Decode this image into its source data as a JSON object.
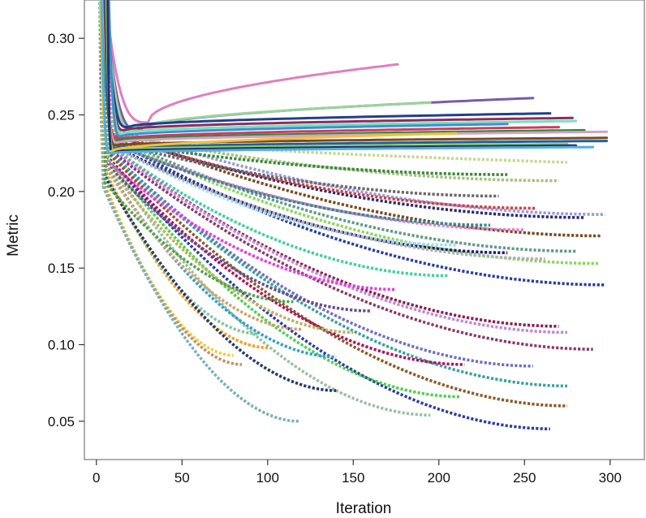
{
  "chart_data": {
    "type": "line",
    "title": "",
    "xlabel": "Iteration",
    "ylabel": "Metric",
    "xlim": [
      -7,
      320
    ],
    "ylim": [
      0.025,
      0.325
    ],
    "xticks": [
      0,
      50,
      100,
      150,
      200,
      250,
      300
    ],
    "yticks": [
      0.05,
      0.1,
      0.15,
      0.2,
      0.25,
      0.3
    ],
    "xtick_labels": [
      "0",
      "50",
      "100",
      "150",
      "200",
      "250",
      "300"
    ],
    "ytick_labels": [
      "0.05",
      "0.10",
      "0.15",
      "0.20",
      "0.25",
      "0.30"
    ],
    "grid": false,
    "legend": "none",
    "series": [
      {
        "color": "#e07fc0",
        "style": "solid",
        "x_start": 30,
        "x_end": 176,
        "y_start": 0.245,
        "y_end": 0.283
      },
      {
        "color": "#7a5aa8",
        "style": "solid",
        "x_start": 25,
        "x_end": 255,
        "y_start": 0.24,
        "y_end": 0.261
      },
      {
        "color": "#9bd49a",
        "style": "solid",
        "x_start": 22,
        "x_end": 195,
        "y_start": 0.24,
        "y_end": 0.258
      },
      {
        "color": "#1f3f8f",
        "style": "solid",
        "x_start": 18,
        "x_end": 265,
        "y_start": 0.242,
        "y_end": 0.251
      },
      {
        "color": "#8e2b5c",
        "style": "solid",
        "x_start": 16,
        "x_end": 278,
        "y_start": 0.24,
        "y_end": 0.248
      },
      {
        "color": "#76e0c0",
        "style": "solid",
        "x_start": 15,
        "x_end": 280,
        "y_start": 0.238,
        "y_end": 0.246
      },
      {
        "color": "#3f8fd0",
        "style": "solid",
        "x_start": 14,
        "x_end": 240,
        "y_start": 0.236,
        "y_end": 0.244
      },
      {
        "color": "#d03a5f",
        "style": "solid",
        "x_start": 13,
        "x_end": 270,
        "y_start": 0.234,
        "y_end": 0.242
      },
      {
        "color": "#2e8b3e",
        "style": "solid",
        "x_start": 12,
        "x_end": 285,
        "y_start": 0.233,
        "y_end": 0.24
      },
      {
        "color": "#d9a0c0",
        "style": "solid",
        "x_start": 12,
        "x_end": 298,
        "y_start": 0.232,
        "y_end": 0.239
      },
      {
        "color": "#7a4a1f",
        "style": "solid",
        "x_start": 11,
        "x_end": 298,
        "y_start": 0.23,
        "y_end": 0.235
      },
      {
        "color": "#1f5fa0",
        "style": "solid",
        "x_start": 10,
        "x_end": 298,
        "y_start": 0.228,
        "y_end": 0.233
      },
      {
        "color": "#8cd65a",
        "style": "solid",
        "x_start": 10,
        "x_end": 275,
        "y_start": 0.227,
        "y_end": 0.231
      },
      {
        "color": "#2c2c6e",
        "style": "solid",
        "x_start": 9,
        "x_end": 280,
        "y_start": 0.226,
        "y_end": 0.23
      },
      {
        "color": "#f0c040",
        "style": "solid",
        "x_start": 8,
        "x_end": 210,
        "y_start": 0.226,
        "y_end": 0.238
      },
      {
        "color": "#4fb0e0",
        "style": "solid",
        "x_start": 8,
        "x_end": 290,
        "y_start": 0.225,
        "y_end": 0.229
      },
      {
        "color": "#9a9ae0",
        "style": "dotted",
        "x_start": 13,
        "x_end": 297,
        "y_start": 0.24,
        "y_end": 0.185
      },
      {
        "color": "#7a4a1f",
        "style": "dotted",
        "x_start": 13,
        "x_end": 295,
        "y_start": 0.238,
        "y_end": 0.171
      },
      {
        "color": "#2c2c6e",
        "style": "dotted",
        "x_start": 12,
        "x_end": 285,
        "y_start": 0.236,
        "y_end": 0.183
      },
      {
        "color": "#c8d890",
        "style": "dotted",
        "x_start": 12,
        "x_end": 275,
        "y_start": 0.238,
        "y_end": 0.219
      },
      {
        "color": "#a8c080",
        "style": "dotted",
        "x_start": 12,
        "x_end": 270,
        "y_start": 0.237,
        "y_end": 0.207
      },
      {
        "color": "#d04040",
        "style": "dotted",
        "x_start": 12,
        "x_end": 257,
        "y_start": 0.236,
        "y_end": 0.189
      },
      {
        "color": "#5f9a8a",
        "style": "dotted",
        "x_start": 11,
        "x_end": 280,
        "y_start": 0.235,
        "y_end": 0.161
      },
      {
        "color": "#8cd65a",
        "style": "dotted",
        "x_start": 11,
        "x_end": 293,
        "y_start": 0.234,
        "y_end": 0.153
      },
      {
        "color": "#2c3ea0",
        "style": "dotted",
        "x_start": 11,
        "x_end": 297,
        "y_start": 0.233,
        "y_end": 0.139
      },
      {
        "color": "#3a8a3a",
        "style": "dotted",
        "x_start": 10,
        "x_end": 240,
        "y_start": 0.232,
        "y_end": 0.211
      },
      {
        "color": "#6a6a6a",
        "style": "dotted",
        "x_start": 10,
        "x_end": 235,
        "y_start": 0.232,
        "y_end": 0.197
      },
      {
        "color": "#e080d0",
        "style": "dotted",
        "x_start": 10,
        "x_end": 250,
        "y_start": 0.231,
        "y_end": 0.175
      },
      {
        "color": "#2e8b8b",
        "style": "dotted",
        "x_start": 10,
        "x_end": 230,
        "y_start": 0.231,
        "y_end": 0.178
      },
      {
        "color": "#1a1a80",
        "style": "dotted",
        "x_start": 10,
        "x_end": 240,
        "y_start": 0.23,
        "y_end": 0.16
      },
      {
        "color": "#a0e0f0",
        "style": "dotted",
        "x_start": 9,
        "x_end": 210,
        "y_start": 0.23,
        "y_end": 0.165
      },
      {
        "color": "#b0b0b0",
        "style": "dotted",
        "x_start": 9,
        "x_end": 262,
        "y_start": 0.229,
        "y_end": 0.156
      },
      {
        "color": "#40d0a0",
        "style": "dotted",
        "x_start": 9,
        "x_end": 205,
        "y_start": 0.229,
        "y_end": 0.145
      },
      {
        "color": "#8a2050",
        "style": "dotted",
        "x_start": 9,
        "x_end": 270,
        "y_start": 0.228,
        "y_end": 0.112
      },
      {
        "color": "#c088d8",
        "style": "dotted",
        "x_start": 9,
        "x_end": 275,
        "y_start": 0.228,
        "y_end": 0.108
      },
      {
        "color": "#8a3a6a",
        "style": "dotted",
        "x_start": 8,
        "x_end": 290,
        "y_start": 0.227,
        "y_end": 0.097
      },
      {
        "color": "#7070c0",
        "style": "dotted",
        "x_start": 8,
        "x_end": 255,
        "y_start": 0.226,
        "y_end": 0.086
      },
      {
        "color": "#3aa0a0",
        "style": "dotted",
        "x_start": 8,
        "x_end": 275,
        "y_start": 0.225,
        "y_end": 0.073
      },
      {
        "color": "#8a5a2a",
        "style": "dotted",
        "x_start": 8,
        "x_end": 275,
        "y_start": 0.224,
        "y_end": 0.06
      },
      {
        "color": "#2c3ea0",
        "style": "dotted",
        "x_start": 7,
        "x_end": 265,
        "y_start": 0.222,
        "y_end": 0.045
      },
      {
        "color": "#b01060",
        "style": "dotted",
        "x_start": 7,
        "x_end": 215,
        "y_start": 0.222,
        "y_end": 0.087
      },
      {
        "color": "#50d050",
        "style": "dotted",
        "x_start": 7,
        "x_end": 212,
        "y_start": 0.221,
        "y_end": 0.066
      },
      {
        "color": "#9ac0a0",
        "style": "dotted",
        "x_start": 7,
        "x_end": 195,
        "y_start": 0.22,
        "y_end": 0.054
      },
      {
        "color": "#e040e0",
        "style": "dotted",
        "x_start": 7,
        "x_end": 175,
        "y_start": 0.219,
        "y_end": 0.136
      },
      {
        "color": "#6a4a8a",
        "style": "dotted",
        "x_start": 6,
        "x_end": 160,
        "y_start": 0.218,
        "y_end": 0.122
      },
      {
        "color": "#c0b060",
        "style": "dotted",
        "x_start": 6,
        "x_end": 150,
        "y_start": 0.217,
        "y_end": 0.108
      },
      {
        "color": "#30a0d0",
        "style": "dotted",
        "x_start": 6,
        "x_end": 140,
        "y_start": 0.216,
        "y_end": 0.092
      },
      {
        "color": "#d0a070",
        "style": "dotted",
        "x_start": 6,
        "x_end": 120,
        "y_start": 0.215,
        "y_end": 0.11
      },
      {
        "color": "#f0a020",
        "style": "dotted",
        "x_start": 5,
        "x_end": 100,
        "y_start": 0.214,
        "y_end": 0.098
      },
      {
        "color": "#80c8a0",
        "style": "dotted",
        "x_start": 5,
        "x_end": 95,
        "y_start": 0.212,
        "y_end": 0.107
      },
      {
        "color": "#203a70",
        "style": "dotted",
        "x_start": 5,
        "x_end": 140,
        "y_start": 0.21,
        "y_end": 0.07
      },
      {
        "color": "#e8d040",
        "style": "dotted",
        "x_start": 4,
        "x_end": 80,
        "y_start": 0.208,
        "y_end": 0.093
      },
      {
        "color": "#c89060",
        "style": "dotted",
        "x_start": 4,
        "x_end": 85,
        "y_start": 0.205,
        "y_end": 0.087
      },
      {
        "color": "#7ab0b8",
        "style": "dotted",
        "x_start": 4,
        "x_end": 118,
        "y_start": 0.203,
        "y_end": 0.05
      },
      {
        "color": "#50a050",
        "style": "dotted",
        "x_start": 5,
        "x_end": 115,
        "y_start": 0.206,
        "y_end": 0.128
      }
    ]
  }
}
